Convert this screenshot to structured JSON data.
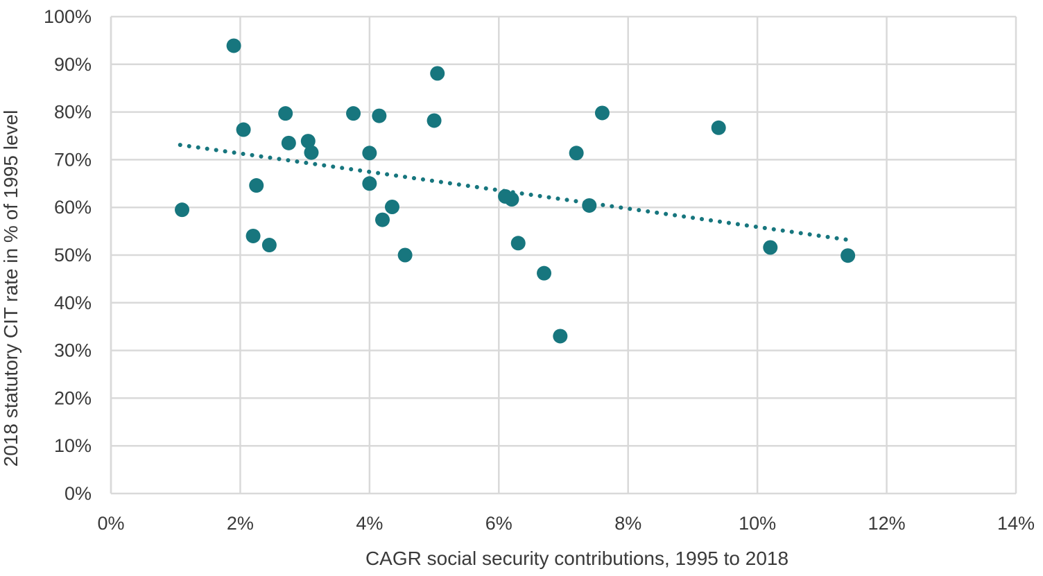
{
  "chart_data": {
    "type": "scatter",
    "title": "",
    "xlabel": "CAGR social security contributions, 1995 to 2018",
    "ylabel": "2018 statutory CIT rate in % of 1995 level",
    "xlim": [
      0,
      14
    ],
    "ylim": [
      0,
      100
    ],
    "grid": true,
    "legend": false,
    "x_ticks": [
      {
        "value": 0,
        "label": "0%"
      },
      {
        "value": 2,
        "label": "2%"
      },
      {
        "value": 4,
        "label": "4%"
      },
      {
        "value": 6,
        "label": "6%"
      },
      {
        "value": 8,
        "label": "8%"
      },
      {
        "value": 10,
        "label": "10%"
      },
      {
        "value": 12,
        "label": "12%"
      },
      {
        "value": 14,
        "label": "14%"
      }
    ],
    "y_ticks": [
      {
        "value": 0,
        "label": "0%"
      },
      {
        "value": 10,
        "label": "10%"
      },
      {
        "value": 20,
        "label": "20%"
      },
      {
        "value": 30,
        "label": "30%"
      },
      {
        "value": 40,
        "label": "40%"
      },
      {
        "value": 50,
        "label": "50%"
      },
      {
        "value": 60,
        "label": "60%"
      },
      {
        "value": 70,
        "label": "70%"
      },
      {
        "value": 80,
        "label": "80%"
      },
      {
        "value": 90,
        "label": "90%"
      },
      {
        "value": 100,
        "label": "100%"
      }
    ],
    "points": [
      {
        "x": 1.1,
        "y": 59.5
      },
      {
        "x": 1.9,
        "y": 93.9
      },
      {
        "x": 2.05,
        "y": 76.3
      },
      {
        "x": 2.2,
        "y": 54.0
      },
      {
        "x": 2.25,
        "y": 64.6
      },
      {
        "x": 2.45,
        "y": 52.1
      },
      {
        "x": 2.7,
        "y": 79.7
      },
      {
        "x": 2.75,
        "y": 73.5
      },
      {
        "x": 3.05,
        "y": 73.9
      },
      {
        "x": 3.1,
        "y": 71.5
      },
      {
        "x": 3.75,
        "y": 79.7
      },
      {
        "x": 4.0,
        "y": 71.4
      },
      {
        "x": 4.0,
        "y": 65.0
      },
      {
        "x": 4.15,
        "y": 79.2
      },
      {
        "x": 4.2,
        "y": 57.4
      },
      {
        "x": 4.35,
        "y": 60.1
      },
      {
        "x": 4.55,
        "y": 50.0
      },
      {
        "x": 5.0,
        "y": 78.2
      },
      {
        "x": 5.05,
        "y": 88.1
      },
      {
        "x": 6.1,
        "y": 62.3
      },
      {
        "x": 6.2,
        "y": 61.7
      },
      {
        "x": 6.3,
        "y": 52.5
      },
      {
        "x": 6.7,
        "y": 46.2
      },
      {
        "x": 6.95,
        "y": 33.0
      },
      {
        "x": 7.2,
        "y": 71.4
      },
      {
        "x": 7.4,
        "y": 60.4
      },
      {
        "x": 7.6,
        "y": 79.8
      },
      {
        "x": 9.4,
        "y": 76.7
      },
      {
        "x": 10.2,
        "y": 51.6
      },
      {
        "x": 11.4,
        "y": 49.9
      }
    ],
    "trendline": {
      "style": "dotted",
      "x1": 1.07,
      "y1": 73.1,
      "x2": 11.45,
      "y2": 53.1
    },
    "colors": {
      "marker": "#17767E",
      "trendline": "#17767E",
      "grid": "#D9D9D9",
      "axis_line": "#D9D9D9",
      "text": "#3A3A3A",
      "background": "#FFFFFF"
    }
  }
}
